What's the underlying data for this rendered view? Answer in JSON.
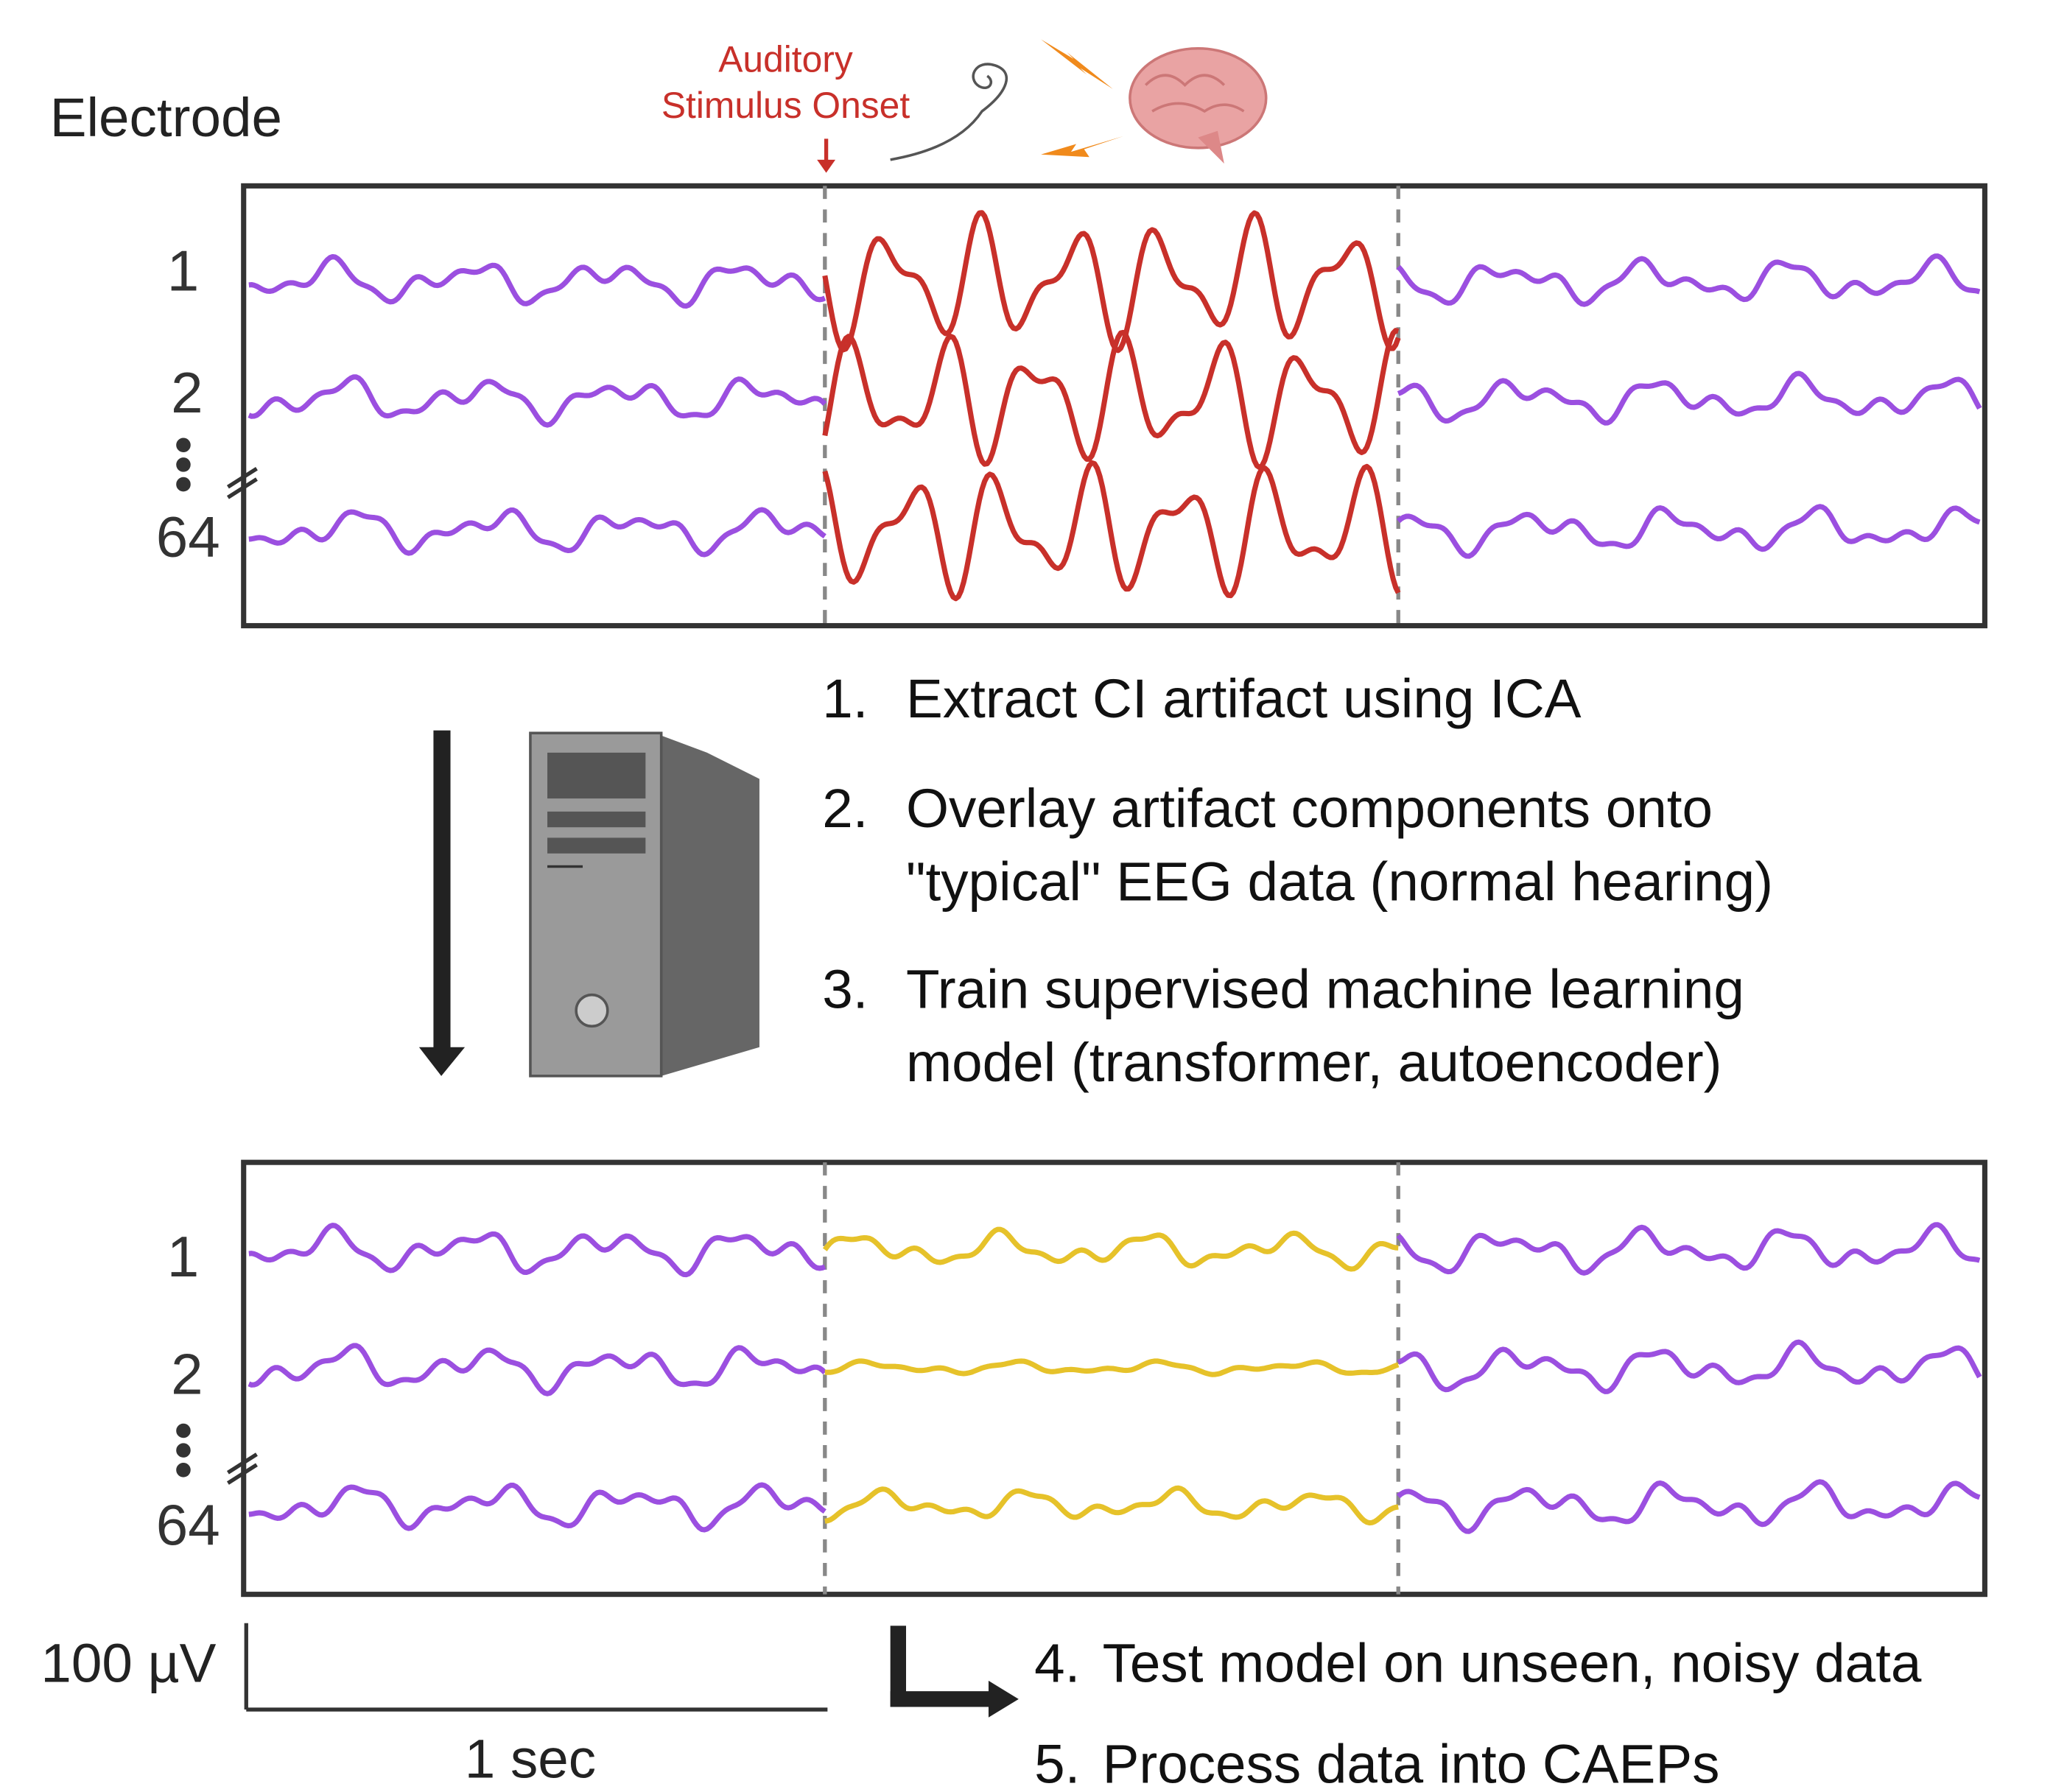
{
  "header": {
    "label": "Electrode"
  },
  "stimulus": {
    "lines": [
      "Auditory",
      "Stimulus Onset"
    ]
  },
  "top_panel": {
    "channels": [
      "1",
      "2",
      "64"
    ]
  },
  "bottom_panel": {
    "channels": [
      "1",
      "2",
      "64"
    ]
  },
  "steps": [
    {
      "number": "1.",
      "lines": [
        "Extract CI artifact using ICA"
      ]
    },
    {
      "number": "2.",
      "lines": [
        "Overlay artifact components onto",
        "\"typical\" EEG data (normal hearing)"
      ]
    },
    {
      "number": "3.",
      "lines": [
        "Train supervised machine learning",
        "model (transformer, autoencoder)"
      ]
    },
    {
      "number": "4.",
      "lines": [
        "Test model on unseen, noisy data"
      ]
    },
    {
      "number": "5.",
      "lines": [
        "Process data into CAEPs"
      ]
    }
  ],
  "scale_bar": {
    "amplitude": "100 µV",
    "time": "1 sec"
  }
}
